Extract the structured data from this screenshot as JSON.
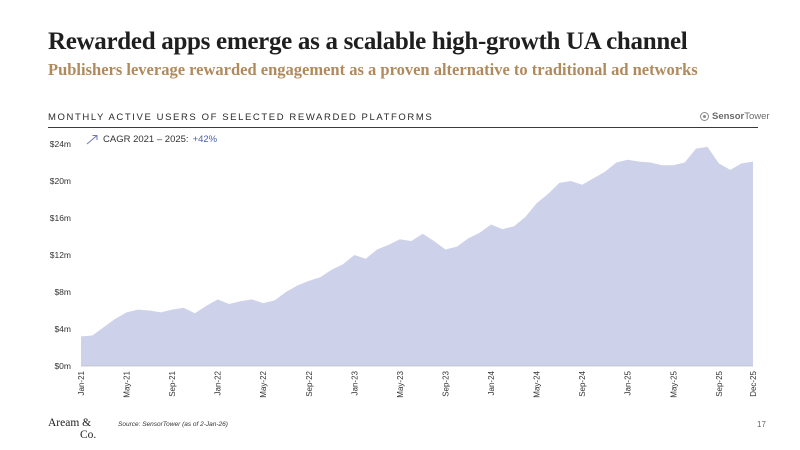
{
  "title": "Rewarded apps emerge as a scalable high-growth UA channel",
  "subtitle": "Publishers leverage rewarded engagement as a proven alternative to traditional ad networks",
  "section_label": "MONTHLY ACTIVE USERS OF SELECTED REWARDED PLATFORMS",
  "brand": {
    "name": "Sensor",
    "name_suffix": "Tower",
    "icon": "sensor-tower-logo-icon"
  },
  "cagr": {
    "label": "CAGR 2021 – 2025:",
    "value": "+42%",
    "icon": "trend-arrow-icon"
  },
  "footer": {
    "logo_line1": "Aream &",
    "logo_line2": "Co.",
    "source": "Source: SensorTower (as of 2-Jan-26)",
    "page_number": "17"
  },
  "colors": {
    "area_fill": "#ced1ea",
    "accent_gold": "#b18a5c",
    "accent_blue": "#4a5fb0"
  },
  "chart_data": {
    "type": "area",
    "title": "MONTHLY ACTIVE USERS OF SELECTED REWARDED PLATFORMS",
    "xlabel": "",
    "ylabel": "",
    "unit": "$m",
    "ylim": [
      0,
      24
    ],
    "yticks": [
      0,
      4,
      8,
      12,
      16,
      20,
      24
    ],
    "ytick_labels": [
      "$0m",
      "$4m",
      "$8m",
      "$12m",
      "$16m",
      "$20m",
      "$24m"
    ],
    "x": [
      "Jan-21",
      "Feb-21",
      "Mar-21",
      "Apr-21",
      "May-21",
      "Jun-21",
      "Jul-21",
      "Aug-21",
      "Sep-21",
      "Oct-21",
      "Nov-21",
      "Dec-21",
      "Jan-22",
      "Feb-22",
      "Mar-22",
      "Apr-22",
      "May-22",
      "Jun-22",
      "Jul-22",
      "Aug-22",
      "Sep-22",
      "Oct-22",
      "Nov-22",
      "Dec-22",
      "Jan-23",
      "Feb-23",
      "Mar-23",
      "Apr-23",
      "May-23",
      "Jun-23",
      "Jul-23",
      "Aug-23",
      "Sep-23",
      "Oct-23",
      "Nov-23",
      "Dec-23",
      "Jan-24",
      "Feb-24",
      "Mar-24",
      "Apr-24",
      "May-24",
      "Jun-24",
      "Jul-24",
      "Aug-24",
      "Sep-24",
      "Oct-24",
      "Nov-24",
      "Dec-24",
      "Jan-25",
      "Feb-25",
      "Mar-25",
      "Apr-25",
      "May-25",
      "Jun-25",
      "Jul-25",
      "Aug-25",
      "Sep-25",
      "Oct-25",
      "Nov-25",
      "Dec-25"
    ],
    "xtick_labels": [
      "Jan-21",
      "May-21",
      "Sep-21",
      "Jan-22",
      "May-22",
      "Sep-22",
      "Jan-23",
      "May-23",
      "Sep-23",
      "Jan-24",
      "May-24",
      "Sep-24",
      "Jan-25",
      "May-25",
      "Sep-25",
      "Dec-25"
    ],
    "series": [
      {
        "name": "Monthly active users",
        "values": [
          3.2,
          3.3,
          4.2,
          5.1,
          5.8,
          6.1,
          6.0,
          5.8,
          6.1,
          6.3,
          5.7,
          6.5,
          7.2,
          6.7,
          7.0,
          7.2,
          6.8,
          7.1,
          8.0,
          8.7,
          9.2,
          9.6,
          10.4,
          11.0,
          12.0,
          11.6,
          12.6,
          13.1,
          13.7,
          13.5,
          14.3,
          13.5,
          12.6,
          12.9,
          13.8,
          14.4,
          15.3,
          14.8,
          15.1,
          16.1,
          17.6,
          18.6,
          19.8,
          20.0,
          19.6,
          20.3,
          21.0,
          22.0,
          22.3,
          22.1,
          22.0,
          21.7,
          21.7,
          22.0,
          23.5,
          23.7,
          21.9,
          21.2,
          21.9,
          22.1
        ]
      }
    ]
  }
}
